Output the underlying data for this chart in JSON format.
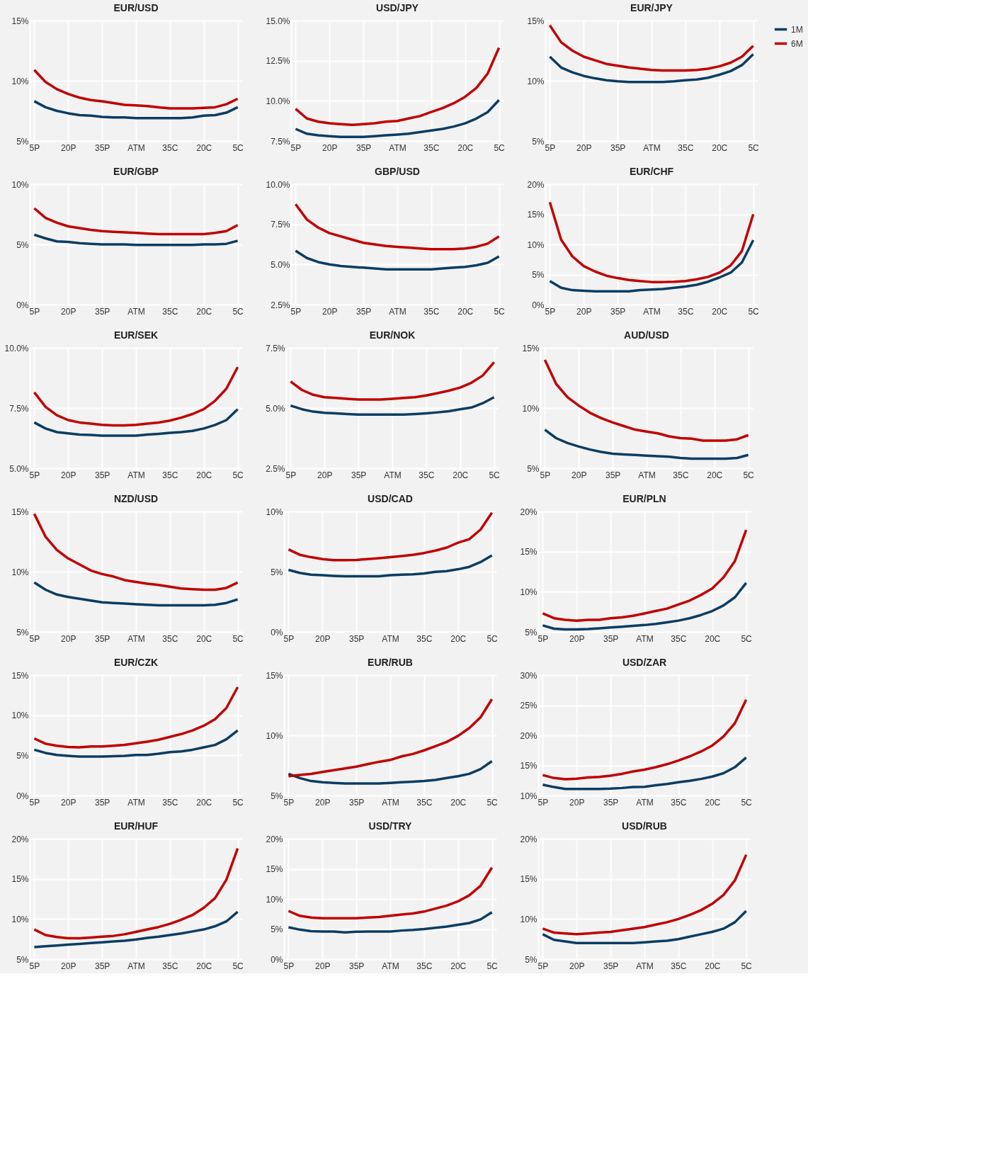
{
  "chart_data": [
    {
      "type": "line",
      "title": "EUR/USD",
      "categories": [
        "5P",
        null,
        null,
        "20P",
        null,
        null,
        "35P",
        null,
        null,
        "ATM",
        null,
        null,
        "35C",
        null,
        null,
        "20C",
        null,
        null,
        "5C"
      ],
      "ylim": [
        5,
        15
      ],
      "yticks": [
        {
          "value": 5,
          "label": "5%"
        },
        {
          "value": 10,
          "label": "10%"
        },
        {
          "value": 15,
          "label": "15%"
        }
      ],
      "grid": true,
      "legend": "top right",
      "series": [
        {
          "name": "1M",
          "color": "#0b3d63",
          "values": [
            8.3,
            7.8,
            7.5,
            7.3,
            7.15,
            7.1,
            7.0,
            6.95,
            6.95,
            6.9,
            6.9,
            6.9,
            6.9,
            6.9,
            6.95,
            7.1,
            7.15,
            7.35,
            7.8
          ]
        },
        {
          "name": "6M",
          "color": "#c00000",
          "values": [
            10.9,
            9.9,
            9.3,
            8.9,
            8.6,
            8.4,
            8.3,
            8.15,
            8.0,
            7.95,
            7.9,
            7.8,
            7.7,
            7.7,
            7.7,
            7.75,
            7.8,
            8.05,
            8.5
          ]
        }
      ]
    },
    {
      "type": "line",
      "title": "USD/JPY",
      "categories": [
        "5P",
        null,
        null,
        "20P",
        null,
        null,
        "35P",
        null,
        null,
        "ATM",
        null,
        null,
        "35C",
        null,
        null,
        "20C",
        null,
        null,
        "5C"
      ],
      "ylim": [
        7.5,
        15
      ],
      "yticks": [
        {
          "value": 7.5,
          "label": "7.5%"
        },
        {
          "value": 10,
          "label": "10.0%"
        },
        {
          "value": 12.5,
          "label": "12.5%"
        },
        {
          "value": 15,
          "label": "15.0%"
        }
      ],
      "grid": true,
      "legend": "top right",
      "series": [
        {
          "name": "1M",
          "color": "#0b3d63",
          "values": [
            8.25,
            7.95,
            7.85,
            7.8,
            7.75,
            7.75,
            7.75,
            7.8,
            7.85,
            7.9,
            7.95,
            8.05,
            8.15,
            8.25,
            8.4,
            8.6,
            8.9,
            9.3,
            10.05
          ]
        },
        {
          "name": "6M",
          "color": "#c00000",
          "values": [
            9.5,
            8.9,
            8.7,
            8.6,
            8.55,
            8.5,
            8.55,
            8.6,
            8.7,
            8.75,
            8.9,
            9.05,
            9.3,
            9.55,
            9.85,
            10.25,
            10.8,
            11.7,
            13.3
          ]
        }
      ]
    },
    {
      "type": "line",
      "title": "EUR/JPY",
      "categories": [
        "5P",
        null,
        null,
        "20P",
        null,
        null,
        "35P",
        null,
        null,
        "ATM",
        null,
        null,
        "35C",
        null,
        null,
        "20C",
        null,
        null,
        "5C"
      ],
      "ylim": [
        5,
        15
      ],
      "yticks": [
        {
          "value": 5,
          "label": "5%"
        },
        {
          "value": 10,
          "label": "10%"
        },
        {
          "value": 15,
          "label": "15%"
        }
      ],
      "grid": true,
      "legend": "top right",
      "series": [
        {
          "name": "1M",
          "color": "#0b3d63",
          "values": [
            12.0,
            11.1,
            10.7,
            10.4,
            10.2,
            10.05,
            9.95,
            9.9,
            9.9,
            9.9,
            9.9,
            9.95,
            10.05,
            10.1,
            10.25,
            10.5,
            10.8,
            11.3,
            12.2
          ]
        },
        {
          "name": "6M",
          "color": "#c00000",
          "values": [
            14.6,
            13.2,
            12.5,
            12.0,
            11.7,
            11.4,
            11.25,
            11.1,
            11.0,
            10.9,
            10.85,
            10.85,
            10.85,
            10.9,
            11.0,
            11.2,
            11.5,
            12.0,
            12.9
          ]
        }
      ]
    },
    {
      "type": "line",
      "title": "EUR/GBP",
      "categories": [
        "5P",
        null,
        null,
        "20P",
        null,
        null,
        "35P",
        null,
        null,
        "ATM",
        null,
        null,
        "35C",
        null,
        null,
        "20C",
        null,
        null,
        "5C"
      ],
      "ylim": [
        0,
        10
      ],
      "yticks": [
        {
          "value": 0,
          "label": "0%"
        },
        {
          "value": 5,
          "label": "5%"
        },
        {
          "value": 10,
          "label": "10%"
        }
      ],
      "grid": true,
      "legend": "top right",
      "series": [
        {
          "name": "1M",
          "color": "#0b3d63",
          "values": [
            5.8,
            5.5,
            5.25,
            5.2,
            5.1,
            5.05,
            5.0,
            5.0,
            5.0,
            4.95,
            4.95,
            4.95,
            4.95,
            4.95,
            4.95,
            5.0,
            5.0,
            5.05,
            5.3
          ]
        },
        {
          "name": "6M",
          "color": "#c00000",
          "values": [
            8.0,
            7.2,
            6.8,
            6.5,
            6.35,
            6.2,
            6.1,
            6.05,
            6.0,
            5.95,
            5.9,
            5.85,
            5.85,
            5.85,
            5.85,
            5.85,
            5.95,
            6.1,
            6.6
          ]
        }
      ]
    },
    {
      "type": "line",
      "title": "GBP/USD",
      "categories": [
        "5P",
        null,
        null,
        "20P",
        null,
        null,
        "35P",
        null,
        null,
        "ATM",
        null,
        null,
        "35C",
        null,
        null,
        "20C",
        null,
        null,
        "5C"
      ],
      "ylim": [
        2.5,
        10
      ],
      "yticks": [
        {
          "value": 2.5,
          "label": "2.5%"
        },
        {
          "value": 5,
          "label": "5.0%"
        },
        {
          "value": 7.5,
          "label": "7.5%"
        },
        {
          "value": 10,
          "label": "10.0%"
        }
      ],
      "grid": true,
      "legend": "top right",
      "series": [
        {
          "name": "1M",
          "color": "#0b3d63",
          "values": [
            5.85,
            5.4,
            5.15,
            5.0,
            4.9,
            4.85,
            4.8,
            4.75,
            4.7,
            4.7,
            4.7,
            4.7,
            4.7,
            4.75,
            4.8,
            4.85,
            4.95,
            5.1,
            5.5
          ]
        },
        {
          "name": "6M",
          "color": "#c00000",
          "values": [
            8.75,
            7.8,
            7.3,
            6.95,
            6.75,
            6.55,
            6.35,
            6.25,
            6.15,
            6.1,
            6.05,
            6.0,
            5.95,
            5.95,
            5.95,
            6.0,
            6.1,
            6.3,
            6.75
          ]
        }
      ]
    },
    {
      "type": "line",
      "title": "EUR/CHF",
      "categories": [
        "5P",
        null,
        null,
        "20P",
        null,
        null,
        "35P",
        null,
        null,
        "ATM",
        null,
        null,
        "35C",
        null,
        null,
        "20C",
        null,
        null,
        "5C"
      ],
      "ylim": [
        0,
        20
      ],
      "yticks": [
        {
          "value": 0,
          "label": "0%"
        },
        {
          "value": 5,
          "label": "5%"
        },
        {
          "value": 10,
          "label": "10%"
        },
        {
          "value": 15,
          "label": "15%"
        },
        {
          "value": 20,
          "label": "20%"
        }
      ],
      "grid": true,
      "legend": "top right",
      "series": [
        {
          "name": "1M",
          "color": "#0b3d63",
          "values": [
            3.9,
            2.8,
            2.4,
            2.3,
            2.2,
            2.2,
            2.2,
            2.2,
            2.4,
            2.5,
            2.6,
            2.8,
            3.0,
            3.3,
            3.8,
            4.5,
            5.3,
            7.0,
            10.7
          ]
        },
        {
          "name": "6M",
          "color": "#c00000",
          "values": [
            17.0,
            10.8,
            8.0,
            6.4,
            5.5,
            4.8,
            4.4,
            4.1,
            3.9,
            3.75,
            3.75,
            3.8,
            3.9,
            4.2,
            4.6,
            5.3,
            6.5,
            8.9,
            15.0
          ]
        }
      ]
    },
    {
      "type": "line",
      "title": "EUR/SEK",
      "categories": [
        "5P",
        null,
        null,
        "20P",
        null,
        null,
        "35P",
        null,
        null,
        "ATM",
        null,
        null,
        "35C",
        null,
        null,
        "20C",
        null,
        null,
        "5C"
      ],
      "ylim": [
        5,
        10
      ],
      "yticks": [
        {
          "value": 5,
          "label": "5.0%"
        },
        {
          "value": 7.5,
          "label": "7.5%"
        },
        {
          "value": 10,
          "label": "10.0%"
        }
      ],
      "grid": true,
      "legend": "top right",
      "series": [
        {
          "name": "1M",
          "color": "#0b3d63",
          "values": [
            6.9,
            6.65,
            6.5,
            6.45,
            6.4,
            6.38,
            6.35,
            6.35,
            6.35,
            6.35,
            6.4,
            6.43,
            6.47,
            6.5,
            6.55,
            6.65,
            6.8,
            7.0,
            7.45
          ]
        },
        {
          "name": "6M",
          "color": "#c00000",
          "values": [
            8.15,
            7.55,
            7.2,
            7.0,
            6.9,
            6.85,
            6.8,
            6.78,
            6.78,
            6.8,
            6.85,
            6.9,
            6.98,
            7.1,
            7.25,
            7.45,
            7.8,
            8.3,
            9.2
          ]
        }
      ]
    },
    {
      "type": "line",
      "title": "EUR/NOK",
      "categories": [
        "5P",
        null,
        null,
        "20P",
        null,
        null,
        "35P",
        null,
        null,
        "ATM",
        null,
        null,
        "35C",
        null,
        null,
        "20C",
        null,
        null,
        "5C"
      ],
      "ylim": [
        2.5,
        7.5
      ],
      "yticks": [
        {
          "value": 2.5,
          "label": "2.5%"
        },
        {
          "value": 5,
          "label": "5.0%"
        },
        {
          "value": 7.5,
          "label": "7.5%"
        }
      ],
      "grid": true,
      "legend": "top right",
      "series": [
        {
          "name": "1M",
          "color": "#0b3d63",
          "values": [
            5.1,
            4.95,
            4.85,
            4.8,
            4.78,
            4.75,
            4.73,
            4.73,
            4.73,
            4.73,
            4.73,
            4.75,
            4.78,
            4.82,
            4.87,
            4.95,
            5.02,
            5.2,
            5.45
          ]
        },
        {
          "name": "6M",
          "color": "#c00000",
          "values": [
            6.1,
            5.75,
            5.55,
            5.45,
            5.42,
            5.38,
            5.35,
            5.35,
            5.35,
            5.38,
            5.42,
            5.45,
            5.52,
            5.62,
            5.72,
            5.85,
            6.05,
            6.35,
            6.9
          ]
        }
      ]
    },
    {
      "type": "line",
      "title": "AUD/USD",
      "categories": [
        "5P",
        null,
        null,
        "20P",
        null,
        null,
        "35P",
        null,
        null,
        "ATM",
        null,
        null,
        "35C",
        null,
        null,
        "20C",
        null,
        null,
        "5C"
      ],
      "ylim": [
        5,
        15
      ],
      "yticks": [
        {
          "value": 5,
          "label": "5%"
        },
        {
          "value": 10,
          "label": "10%"
        },
        {
          "value": 15,
          "label": "15%"
        }
      ],
      "grid": true,
      "legend": "top right",
      "series": [
        {
          "name": "1M",
          "color": "#0b3d63",
          "values": [
            8.2,
            7.5,
            7.1,
            6.8,
            6.55,
            6.35,
            6.2,
            6.15,
            6.1,
            6.05,
            6.0,
            5.95,
            5.85,
            5.8,
            5.8,
            5.8,
            5.8,
            5.85,
            6.1
          ]
        },
        {
          "name": "6M",
          "color": "#c00000",
          "values": [
            14.0,
            12.0,
            10.9,
            10.2,
            9.6,
            9.15,
            8.8,
            8.5,
            8.2,
            8.05,
            7.9,
            7.65,
            7.5,
            7.45,
            7.3,
            7.3,
            7.3,
            7.4,
            7.75
          ]
        }
      ]
    },
    {
      "type": "line",
      "title": "NZD/USD",
      "categories": [
        "5P",
        null,
        null,
        "20P",
        null,
        null,
        "35P",
        null,
        null,
        "ATM",
        null,
        null,
        "35C",
        null,
        null,
        "20C",
        null,
        null,
        "5C"
      ],
      "ylim": [
        5,
        15
      ],
      "yticks": [
        {
          "value": 5,
          "label": "5%"
        },
        {
          "value": 10,
          "label": "10%"
        },
        {
          "value": 15,
          "label": "15%"
        }
      ],
      "grid": true,
      "legend": "top right",
      "series": [
        {
          "name": "1M",
          "color": "#0b3d63",
          "values": [
            9.1,
            8.5,
            8.1,
            7.9,
            7.75,
            7.6,
            7.45,
            7.4,
            7.35,
            7.3,
            7.25,
            7.2,
            7.2,
            7.2,
            7.2,
            7.2,
            7.25,
            7.4,
            7.7
          ]
        },
        {
          "name": "6M",
          "color": "#c00000",
          "values": [
            14.8,
            12.9,
            11.8,
            11.1,
            10.6,
            10.1,
            9.8,
            9.6,
            9.3,
            9.15,
            9.0,
            8.9,
            8.75,
            8.6,
            8.55,
            8.5,
            8.5,
            8.65,
            9.1
          ]
        }
      ]
    },
    {
      "type": "line",
      "title": "USD/CAD",
      "categories": [
        "5P",
        null,
        null,
        "20P",
        null,
        null,
        "35P",
        null,
        null,
        "ATM",
        null,
        null,
        "35C",
        null,
        null,
        "20C",
        null,
        null,
        "5C"
      ],
      "ylim": [
        0,
        10
      ],
      "yticks": [
        {
          "value": 0,
          "label": "0%"
        },
        {
          "value": 5,
          "label": "5%"
        },
        {
          "value": 10,
          "label": "10%"
        }
      ],
      "grid": true,
      "legend": "top right",
      "series": [
        {
          "name": "1M",
          "color": "#0b3d63",
          "values": [
            5.15,
            4.9,
            4.75,
            4.7,
            4.65,
            4.62,
            4.62,
            4.62,
            4.62,
            4.7,
            4.75,
            4.78,
            4.85,
            4.98,
            5.05,
            5.2,
            5.4,
            5.8,
            6.35
          ]
        },
        {
          "name": "6M",
          "color": "#c00000",
          "values": [
            6.85,
            6.4,
            6.2,
            6.05,
            5.95,
            5.95,
            5.97,
            6.05,
            6.12,
            6.2,
            6.3,
            6.4,
            6.55,
            6.75,
            7.0,
            7.4,
            7.7,
            8.5,
            9.9
          ]
        }
      ]
    },
    {
      "type": "line",
      "title": "EUR/PLN",
      "categories": [
        "5P",
        null,
        null,
        "20P",
        null,
        null,
        "35P",
        null,
        null,
        "ATM",
        null,
        null,
        "35C",
        null,
        null,
        "20C",
        null,
        null,
        "5C"
      ],
      "ylim": [
        5,
        20
      ],
      "yticks": [
        {
          "value": 5,
          "label": "5%"
        },
        {
          "value": 10,
          "label": "10%"
        },
        {
          "value": 15,
          "label": "15%"
        },
        {
          "value": 20,
          "label": "20%"
        }
      ],
      "grid": true,
      "legend": "top right",
      "series": [
        {
          "name": "1M",
          "color": "#0b3d63",
          "values": [
            5.8,
            5.4,
            5.3,
            5.3,
            5.35,
            5.45,
            5.55,
            5.65,
            5.75,
            5.85,
            6.0,
            6.2,
            6.4,
            6.7,
            7.1,
            7.6,
            8.3,
            9.3,
            11.1
          ]
        },
        {
          "name": "6M",
          "color": "#c00000",
          "values": [
            7.3,
            6.7,
            6.5,
            6.4,
            6.5,
            6.5,
            6.7,
            6.8,
            7.0,
            7.3,
            7.6,
            7.9,
            8.4,
            8.9,
            9.6,
            10.4,
            11.8,
            13.8,
            17.7
          ]
        }
      ]
    },
    {
      "type": "line",
      "title": "EUR/CZK",
      "categories": [
        "5P",
        null,
        null,
        "20P",
        null,
        null,
        "35P",
        null,
        null,
        "ATM",
        null,
        null,
        "35C",
        null,
        null,
        "20C",
        null,
        null,
        "5C"
      ],
      "ylim": [
        0,
        15
      ],
      "yticks": [
        {
          "value": 0,
          "label": "0%"
        },
        {
          "value": 5,
          "label": "5%"
        },
        {
          "value": 10,
          "label": "10%"
        },
        {
          "value": 15,
          "label": "15%"
        }
      ],
      "grid": true,
      "legend": "top right",
      "series": [
        {
          "name": "1M",
          "color": "#0b3d63",
          "values": [
            5.7,
            5.3,
            5.05,
            4.95,
            4.85,
            4.85,
            4.85,
            4.9,
            4.95,
            5.05,
            5.05,
            5.2,
            5.4,
            5.5,
            5.7,
            6.0,
            6.3,
            7.0,
            8.1
          ]
        },
        {
          "name": "6M",
          "color": "#c00000",
          "values": [
            7.1,
            6.45,
            6.2,
            6.05,
            6.0,
            6.1,
            6.1,
            6.2,
            6.3,
            6.5,
            6.7,
            6.95,
            7.3,
            7.65,
            8.1,
            8.7,
            9.5,
            10.9,
            13.5
          ]
        }
      ]
    },
    {
      "type": "line",
      "title": "EUR/RUB",
      "categories": [
        "5P",
        null,
        null,
        "20P",
        null,
        null,
        "35P",
        null,
        null,
        "ATM",
        null,
        null,
        "35C",
        null,
        null,
        "20C",
        null,
        null,
        "5C"
      ],
      "ylim": [
        5,
        15
      ],
      "yticks": [
        {
          "value": 5,
          "label": "5%"
        },
        {
          "value": 10,
          "label": "10%"
        },
        {
          "value": 15,
          "label": "15%"
        }
      ],
      "grid": true,
      "legend": "top right",
      "series": [
        {
          "name": "1M",
          "color": "#0b3d63",
          "values": [
            6.8,
            6.45,
            6.2,
            6.1,
            6.05,
            6.0,
            6.0,
            6.0,
            6.0,
            6.05,
            6.1,
            6.15,
            6.2,
            6.3,
            6.45,
            6.6,
            6.8,
            7.2,
            7.85
          ]
        },
        {
          "name": "6M",
          "color": "#c00000",
          "values": [
            6.6,
            6.7,
            6.8,
            6.95,
            7.1,
            7.25,
            7.4,
            7.6,
            7.8,
            7.95,
            8.25,
            8.45,
            8.75,
            9.1,
            9.45,
            9.95,
            10.6,
            11.5,
            13.0
          ]
        }
      ]
    },
    {
      "type": "line",
      "title": "USD/ZAR",
      "categories": [
        "5P",
        null,
        null,
        "20P",
        null,
        null,
        "35P",
        null,
        null,
        "ATM",
        null,
        null,
        "35C",
        null,
        null,
        "20C",
        null,
        null,
        "5C"
      ],
      "ylim": [
        10,
        30
      ],
      "yticks": [
        {
          "value": 10,
          "label": "10%"
        },
        {
          "value": 15,
          "label": "15%"
        },
        {
          "value": 20,
          "label": "20%"
        },
        {
          "value": 25,
          "label": "25%"
        },
        {
          "value": 30,
          "label": "30%"
        }
      ],
      "grid": true,
      "legend": "top right",
      "series": [
        {
          "name": "1M",
          "color": "#0b3d63",
          "values": [
            11.8,
            11.4,
            11.1,
            11.1,
            11.1,
            11.1,
            11.15,
            11.25,
            11.4,
            11.45,
            11.7,
            11.9,
            12.2,
            12.45,
            12.75,
            13.15,
            13.7,
            14.7,
            16.3
          ]
        },
        {
          "name": "6M",
          "color": "#c00000",
          "values": [
            13.4,
            12.9,
            12.7,
            12.8,
            13.0,
            13.1,
            13.3,
            13.6,
            14.0,
            14.3,
            14.7,
            15.2,
            15.8,
            16.5,
            17.3,
            18.3,
            19.8,
            22.0,
            25.9
          ]
        }
      ]
    },
    {
      "type": "line",
      "title": "EUR/HUF",
      "categories": [
        "5P",
        null,
        null,
        "20P",
        null,
        null,
        "35P",
        null,
        null,
        "ATM",
        null,
        null,
        "35C",
        null,
        null,
        "20C",
        null,
        null,
        "5C"
      ],
      "ylim": [
        5,
        20
      ],
      "yticks": [
        {
          "value": 5,
          "label": "5%"
        },
        {
          "value": 10,
          "label": "10%"
        },
        {
          "value": 15,
          "label": "15%"
        },
        {
          "value": 20,
          "label": "20%"
        }
      ],
      "grid": true,
      "legend": "top right",
      "series": [
        {
          "name": "1M",
          "color": "#0b3d63",
          "values": [
            6.5,
            6.6,
            6.7,
            6.8,
            6.9,
            7.0,
            7.1,
            7.2,
            7.3,
            7.45,
            7.65,
            7.8,
            8.0,
            8.2,
            8.45,
            8.7,
            9.1,
            9.7,
            10.9
          ]
        },
        {
          "name": "6M",
          "color": "#c00000",
          "values": [
            8.7,
            8.0,
            7.75,
            7.6,
            7.6,
            7.7,
            7.8,
            7.9,
            8.1,
            8.4,
            8.7,
            9.0,
            9.4,
            9.9,
            10.5,
            11.4,
            12.6,
            14.9,
            18.8
          ]
        }
      ]
    },
    {
      "type": "line",
      "title": "USD/TRY",
      "categories": [
        "5P",
        null,
        null,
        "20P",
        null,
        null,
        "35P",
        null,
        null,
        "ATM",
        null,
        null,
        "35C",
        null,
        null,
        "20C",
        null,
        null,
        "5C"
      ],
      "ylim": [
        0,
        20
      ],
      "yticks": [
        {
          "value": 0,
          "label": "0%"
        },
        {
          "value": 5,
          "label": "5%"
        },
        {
          "value": 10,
          "label": "10%"
        },
        {
          "value": 15,
          "label": "15%"
        },
        {
          "value": 20,
          "label": "20%"
        }
      ],
      "grid": true,
      "legend": "top right",
      "series": [
        {
          "name": "1M",
          "color": "#0b3d63",
          "values": [
            5.3,
            4.9,
            4.65,
            4.6,
            4.6,
            4.45,
            4.55,
            4.6,
            4.6,
            4.6,
            4.75,
            4.85,
            5.0,
            5.2,
            5.4,
            5.7,
            6.0,
            6.6,
            7.8
          ]
        },
        {
          "name": "6M",
          "color": "#c00000",
          "values": [
            8.0,
            7.2,
            6.9,
            6.8,
            6.8,
            6.8,
            6.8,
            6.9,
            7.0,
            7.2,
            7.4,
            7.6,
            7.9,
            8.4,
            8.9,
            9.6,
            10.6,
            12.2,
            15.2
          ]
        }
      ]
    },
    {
      "type": "line",
      "title": "USD/RUB",
      "categories": [
        "5P",
        null,
        null,
        "20P",
        null,
        null,
        "35P",
        null,
        null,
        "ATM",
        null,
        null,
        "35C",
        null,
        null,
        "20C",
        null,
        null,
        "5C"
      ],
      "ylim": [
        5,
        20
      ],
      "yticks": [
        {
          "value": 5,
          "label": "5%"
        },
        {
          "value": 10,
          "label": "10%"
        },
        {
          "value": 15,
          "label": "15%"
        },
        {
          "value": 20,
          "label": "20%"
        }
      ],
      "grid": true,
      "legend": "top right",
      "series": [
        {
          "name": "1M",
          "color": "#0b3d63",
          "values": [
            8.1,
            7.4,
            7.2,
            7.0,
            7.0,
            7.0,
            7.0,
            7.0,
            7.0,
            7.1,
            7.2,
            7.3,
            7.5,
            7.8,
            8.1,
            8.4,
            8.8,
            9.6,
            11.0
          ]
        },
        {
          "name": "6M",
          "color": "#c00000",
          "values": [
            8.8,
            8.3,
            8.2,
            8.1,
            8.2,
            8.3,
            8.4,
            8.6,
            8.8,
            9.0,
            9.3,
            9.6,
            10.0,
            10.5,
            11.1,
            11.9,
            13.0,
            14.8,
            18.0
          ]
        }
      ]
    }
  ]
}
